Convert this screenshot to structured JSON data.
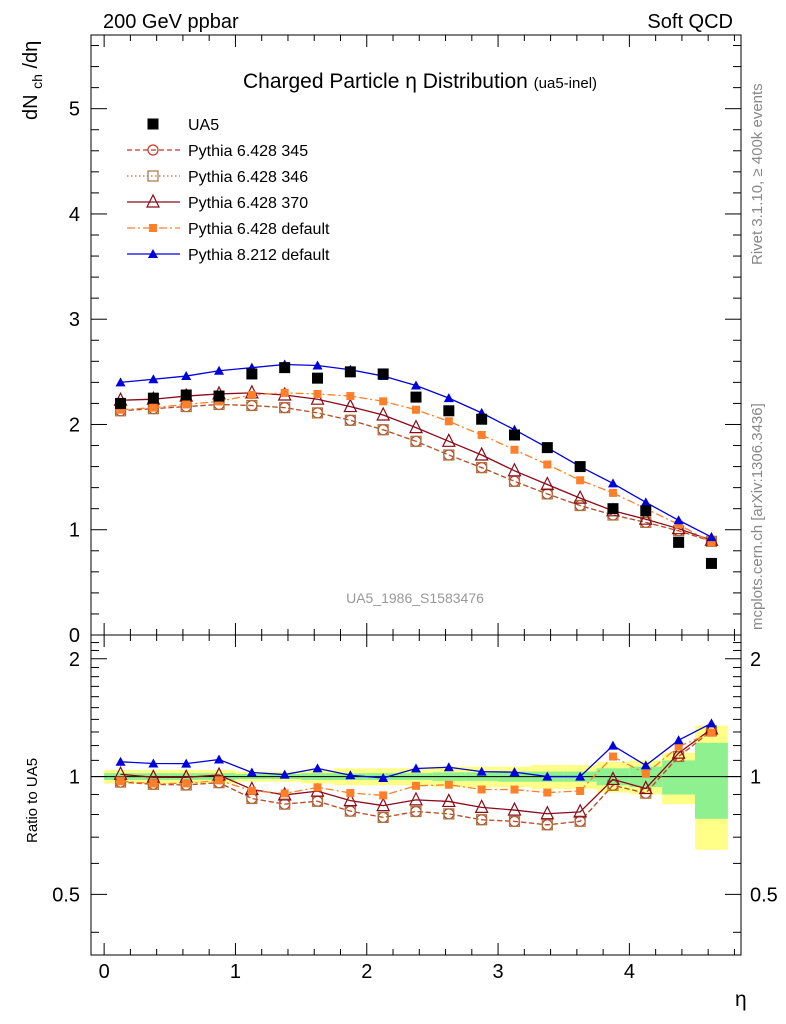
{
  "header": {
    "left": "200 GeV ppbar",
    "right": "Soft QCD"
  },
  "side_labels": {
    "rivet": "Rivet 3.1.10, ≥ 400k events",
    "mcplots": "mcplots.cern.ch [arXiv:1306.3436]"
  },
  "watermark": "UA5_1986_S1583476",
  "colors": {
    "data": "#000000",
    "p345": "#c0392b",
    "p346": "#a6743a",
    "p370": "#8b0a1a",
    "p6def": "#ff7f2a",
    "p8": "#0000dd",
    "band_inner": "#8ef08e",
    "band_outer": "#ffff88"
  },
  "chart_data": {
    "type": "scatter",
    "title_main": "Charged Particle",
    "title_symbol": "η",
    "title_rest": " Distribution",
    "title_suffix": "(ua5-inel)",
    "ylabel_main": "dN",
    "ylabel_sub": "ch",
    "ylabel_tail": "/dη",
    "xlabel": "η",
    "ratio_ylabel": "Ratio to UA5",
    "xlim": [
      -0.1,
      4.85
    ],
    "ylim": [
      0,
      5.7
    ],
    "ratio_ylim": [
      0.35,
      2.3
    ],
    "x_ticks": [
      "0",
      "1",
      "2",
      "3",
      "4"
    ],
    "y_ticks": [
      "0",
      "1",
      "2",
      "3",
      "4",
      "5"
    ],
    "ratio_ticks": [
      "0.5",
      "1",
      "2"
    ],
    "x": [
      0.125,
      0.375,
      0.625,
      0.875,
      1.125,
      1.375,
      1.625,
      1.875,
      2.125,
      2.375,
      2.625,
      2.875,
      3.125,
      3.375,
      3.625,
      3.875,
      4.125,
      4.375,
      4.625
    ],
    "data": {
      "name": "UA5",
      "values": [
        2.2,
        2.25,
        2.28,
        2.27,
        2.48,
        2.54,
        2.44,
        2.5,
        2.48,
        2.26,
        2.13,
        2.05,
        1.9,
        1.78,
        1.6,
        1.2,
        1.18,
        0.88,
        0.68
      ]
    },
    "ratio_band_outer": [
      0.04,
      0.04,
      0.04,
      0.04,
      0.03,
      0.03,
      0.04,
      0.05,
      0.05,
      0.05,
      0.06,
      0.06,
      0.06,
      0.07,
      0.07,
      0.09,
      0.1,
      0.15,
      0.35
    ],
    "ratio_band_inner": [
      0.02,
      0.02,
      0.02,
      0.02,
      0.015,
      0.015,
      0.02,
      0.02,
      0.02,
      0.02,
      0.025,
      0.025,
      0.03,
      0.03,
      0.03,
      0.05,
      0.06,
      0.1,
      0.22
    ],
    "series": [
      {
        "name": "Pythia 6.428 345",
        "color_key": "p345",
        "marker": "circle-open",
        "dash": "5,3",
        "values": [
          2.13,
          2.15,
          2.17,
          2.19,
          2.18,
          2.16,
          2.11,
          2.04,
          1.95,
          1.84,
          1.71,
          1.59,
          1.46,
          1.34,
          1.23,
          1.14,
          1.07,
          0.99,
          0.89
        ]
      },
      {
        "name": "Pythia 6.428 346",
        "color_key": "p346",
        "marker": "square-open",
        "dash": "1.5,2.5",
        "values": [
          2.13,
          2.15,
          2.17,
          2.19,
          2.18,
          2.16,
          2.11,
          2.04,
          1.95,
          1.84,
          1.71,
          1.59,
          1.46,
          1.34,
          1.23,
          1.14,
          1.07,
          0.99,
          0.89
        ]
      },
      {
        "name": "Pythia 6.428 370",
        "color_key": "p370",
        "marker": "triangle-open",
        "dash": "",
        "values": [
          2.23,
          2.24,
          2.27,
          2.29,
          2.3,
          2.28,
          2.24,
          2.17,
          2.09,
          1.97,
          1.84,
          1.71,
          1.56,
          1.43,
          1.3,
          1.18,
          1.1,
          1.01,
          0.9
        ]
      },
      {
        "name": "Pythia 6.428 default",
        "color_key": "p6def",
        "marker": "square-filled",
        "dash": "8,3,2,3",
        "values": [
          2.14,
          2.16,
          2.19,
          2.22,
          2.28,
          2.3,
          2.29,
          2.27,
          2.22,
          2.14,
          2.03,
          1.9,
          1.76,
          1.62,
          1.47,
          1.35,
          1.2,
          1.05,
          0.88
        ]
      },
      {
        "name": "Pythia 8.212 default",
        "color_key": "p8",
        "marker": "triangle-filled",
        "dash": "",
        "values": [
          2.4,
          2.43,
          2.46,
          2.51,
          2.54,
          2.57,
          2.56,
          2.52,
          2.46,
          2.37,
          2.25,
          2.11,
          1.95,
          1.78,
          1.6,
          1.44,
          1.26,
          1.09,
          0.93
        ]
      }
    ]
  }
}
